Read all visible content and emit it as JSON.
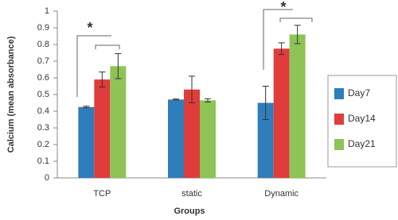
{
  "chart_data": {
    "type": "bar",
    "categories": [
      "TCP",
      "static",
      "Dynamic"
    ],
    "series": [
      {
        "name": "Day7",
        "color": "#2f7ebc",
        "values": [
          0.425,
          0.47,
          0.45
        ],
        "errors": [
          0.005,
          0.003,
          0.1
        ]
      },
      {
        "name": "Day14",
        "color": "#e03c3c",
        "values": [
          0.59,
          0.53,
          0.775
        ],
        "errors": [
          0.045,
          0.08,
          0.035
        ]
      },
      {
        "name": "Day21",
        "color": "#8dc455",
        "values": [
          0.67,
          0.465,
          0.86
        ],
        "errors": [
          0.075,
          0.01,
          0.055
        ]
      }
    ],
    "ylim": [
      0,
      1
    ],
    "yticks": [
      0,
      0.1,
      0.2,
      0.3,
      0.4,
      0.5,
      0.6,
      0.7,
      0.8,
      0.9,
      1
    ],
    "xlabel": "Groups",
    "ylabel": "Calcium (mean absorbance)",
    "annotations": [
      "*",
      "*"
    ],
    "legend": "right"
  }
}
